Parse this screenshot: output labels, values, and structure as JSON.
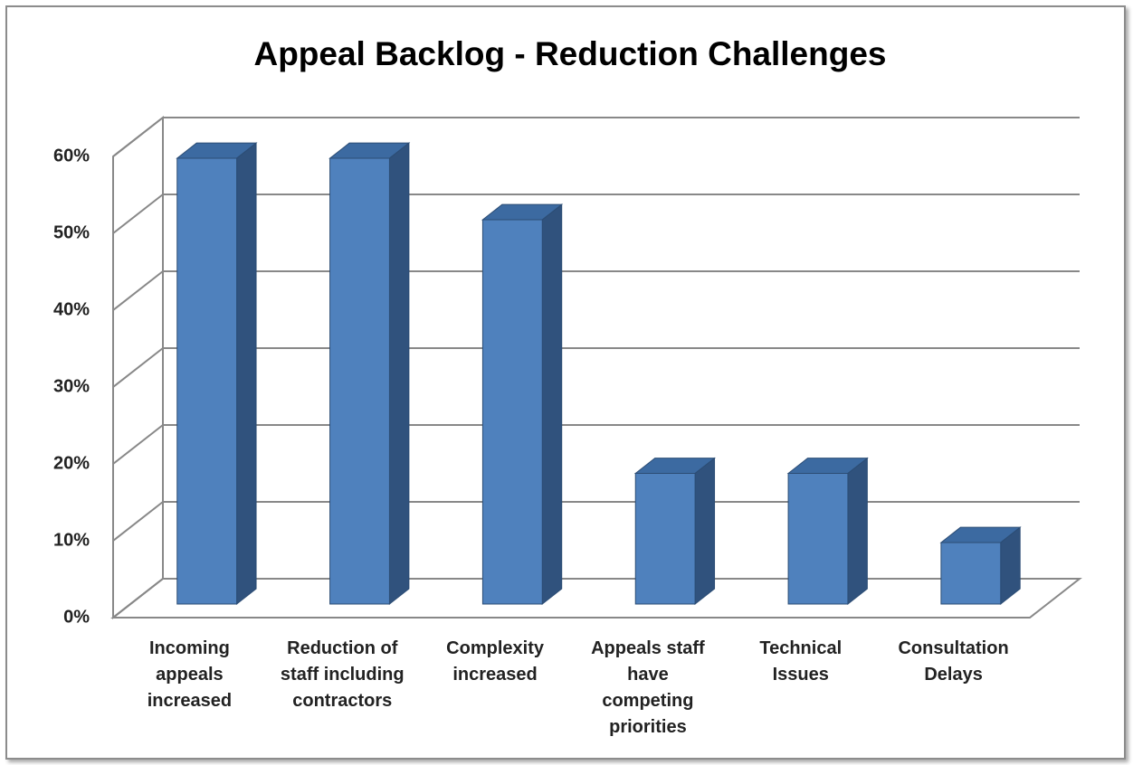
{
  "chart_data": {
    "type": "bar3d",
    "title": "Appeal Backlog - Reduction Challenges",
    "categories": [
      "Incoming appeals increased",
      "Reduction of staff including contractors",
      "Complexity increased",
      "Appeals staff have competing priorities",
      "Technical Issues",
      "Consultation Delays"
    ],
    "values": [
      58,
      58,
      50,
      17,
      17,
      8
    ],
    "color": "#4f81bd",
    "ylim": [
      0,
      60
    ],
    "yticks": [
      {
        "value": 0,
        "label": "0%"
      },
      {
        "value": 10,
        "label": "10%"
      },
      {
        "value": 20,
        "label": "20%"
      },
      {
        "value": 30,
        "label": "30%"
      },
      {
        "value": 40,
        "label": "40%"
      },
      {
        "value": 50,
        "label": "50%"
      },
      {
        "value": 60,
        "label": "60%"
      }
    ],
    "grid": true
  }
}
